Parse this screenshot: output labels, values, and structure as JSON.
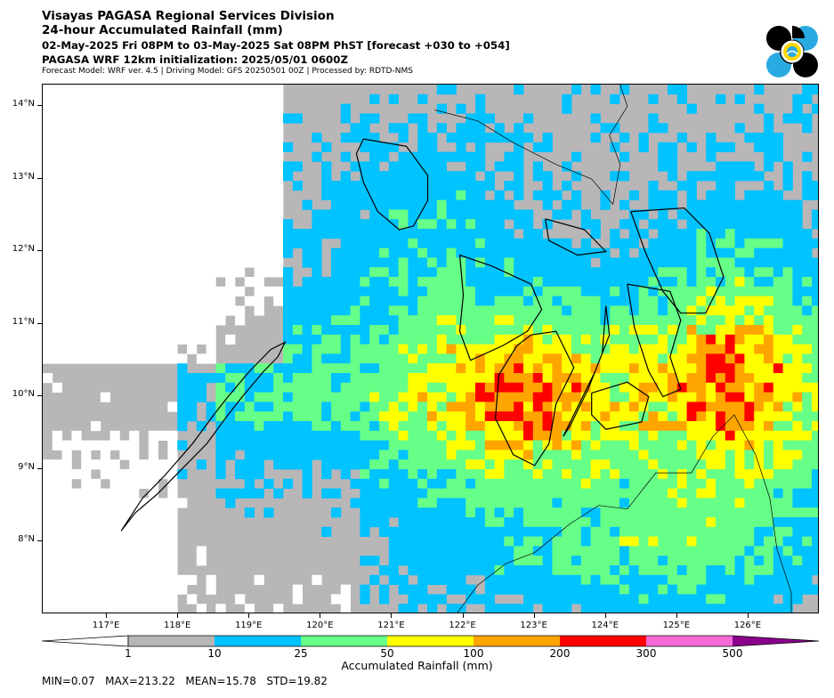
{
  "header": {
    "title1": "Visayas PAGASA Regional Services Division",
    "title2": "24-hour Accumulated Rainfall (mm)",
    "period": "02-May-2025 Fri 08PM to 03-May-2025 Sat 08PM PhST [forecast +030 to +054]",
    "init": "PAGASA WRF 12km initialization: 2025/05/01 0600Z",
    "credits": "Forecast Model: WRF ver. 4.5 | Driving Model: GFS 20250501 00Z | Processed by: RDTD-NMS"
  },
  "map": {
    "lat_labels": [
      "14°N",
      "13°N",
      "12°N",
      "11°N",
      "10°N",
      "9°N",
      "8°N"
    ],
    "lon_labels": [
      "117°E",
      "118°E",
      "119°E",
      "120°E",
      "121°E",
      "122°E",
      "123°E",
      "124°E",
      "125°E",
      "126°E"
    ],
    "lon_range": [
      116.1,
      127.0
    ],
    "lat_range": [
      7.0,
      14.3
    ],
    "background_color": "#b9b6b8",
    "no_rain_color": "#ffffff",
    "coastline_color": "#000000"
  },
  "colorbar": {
    "title": "Accumulated Rainfall (mm)",
    "levels": [
      "1",
      "10",
      "25",
      "50",
      "100",
      "200",
      "300",
      "500"
    ],
    "colors": [
      "#b9b6b8",
      "#00c3ff",
      "#66ff88",
      "#ffff00",
      "#ffa500",
      "#ff0000",
      "#f46ad6",
      "#8b008b"
    ]
  },
  "stats": {
    "text": "MIN=0.07   MAX=213.22   MEAN=15.78   STD=19.82"
  },
  "logo": {
    "icon": "pagasa-logo-icon",
    "colors": [
      "#000000",
      "#29abe2",
      "#ffd700"
    ]
  }
}
